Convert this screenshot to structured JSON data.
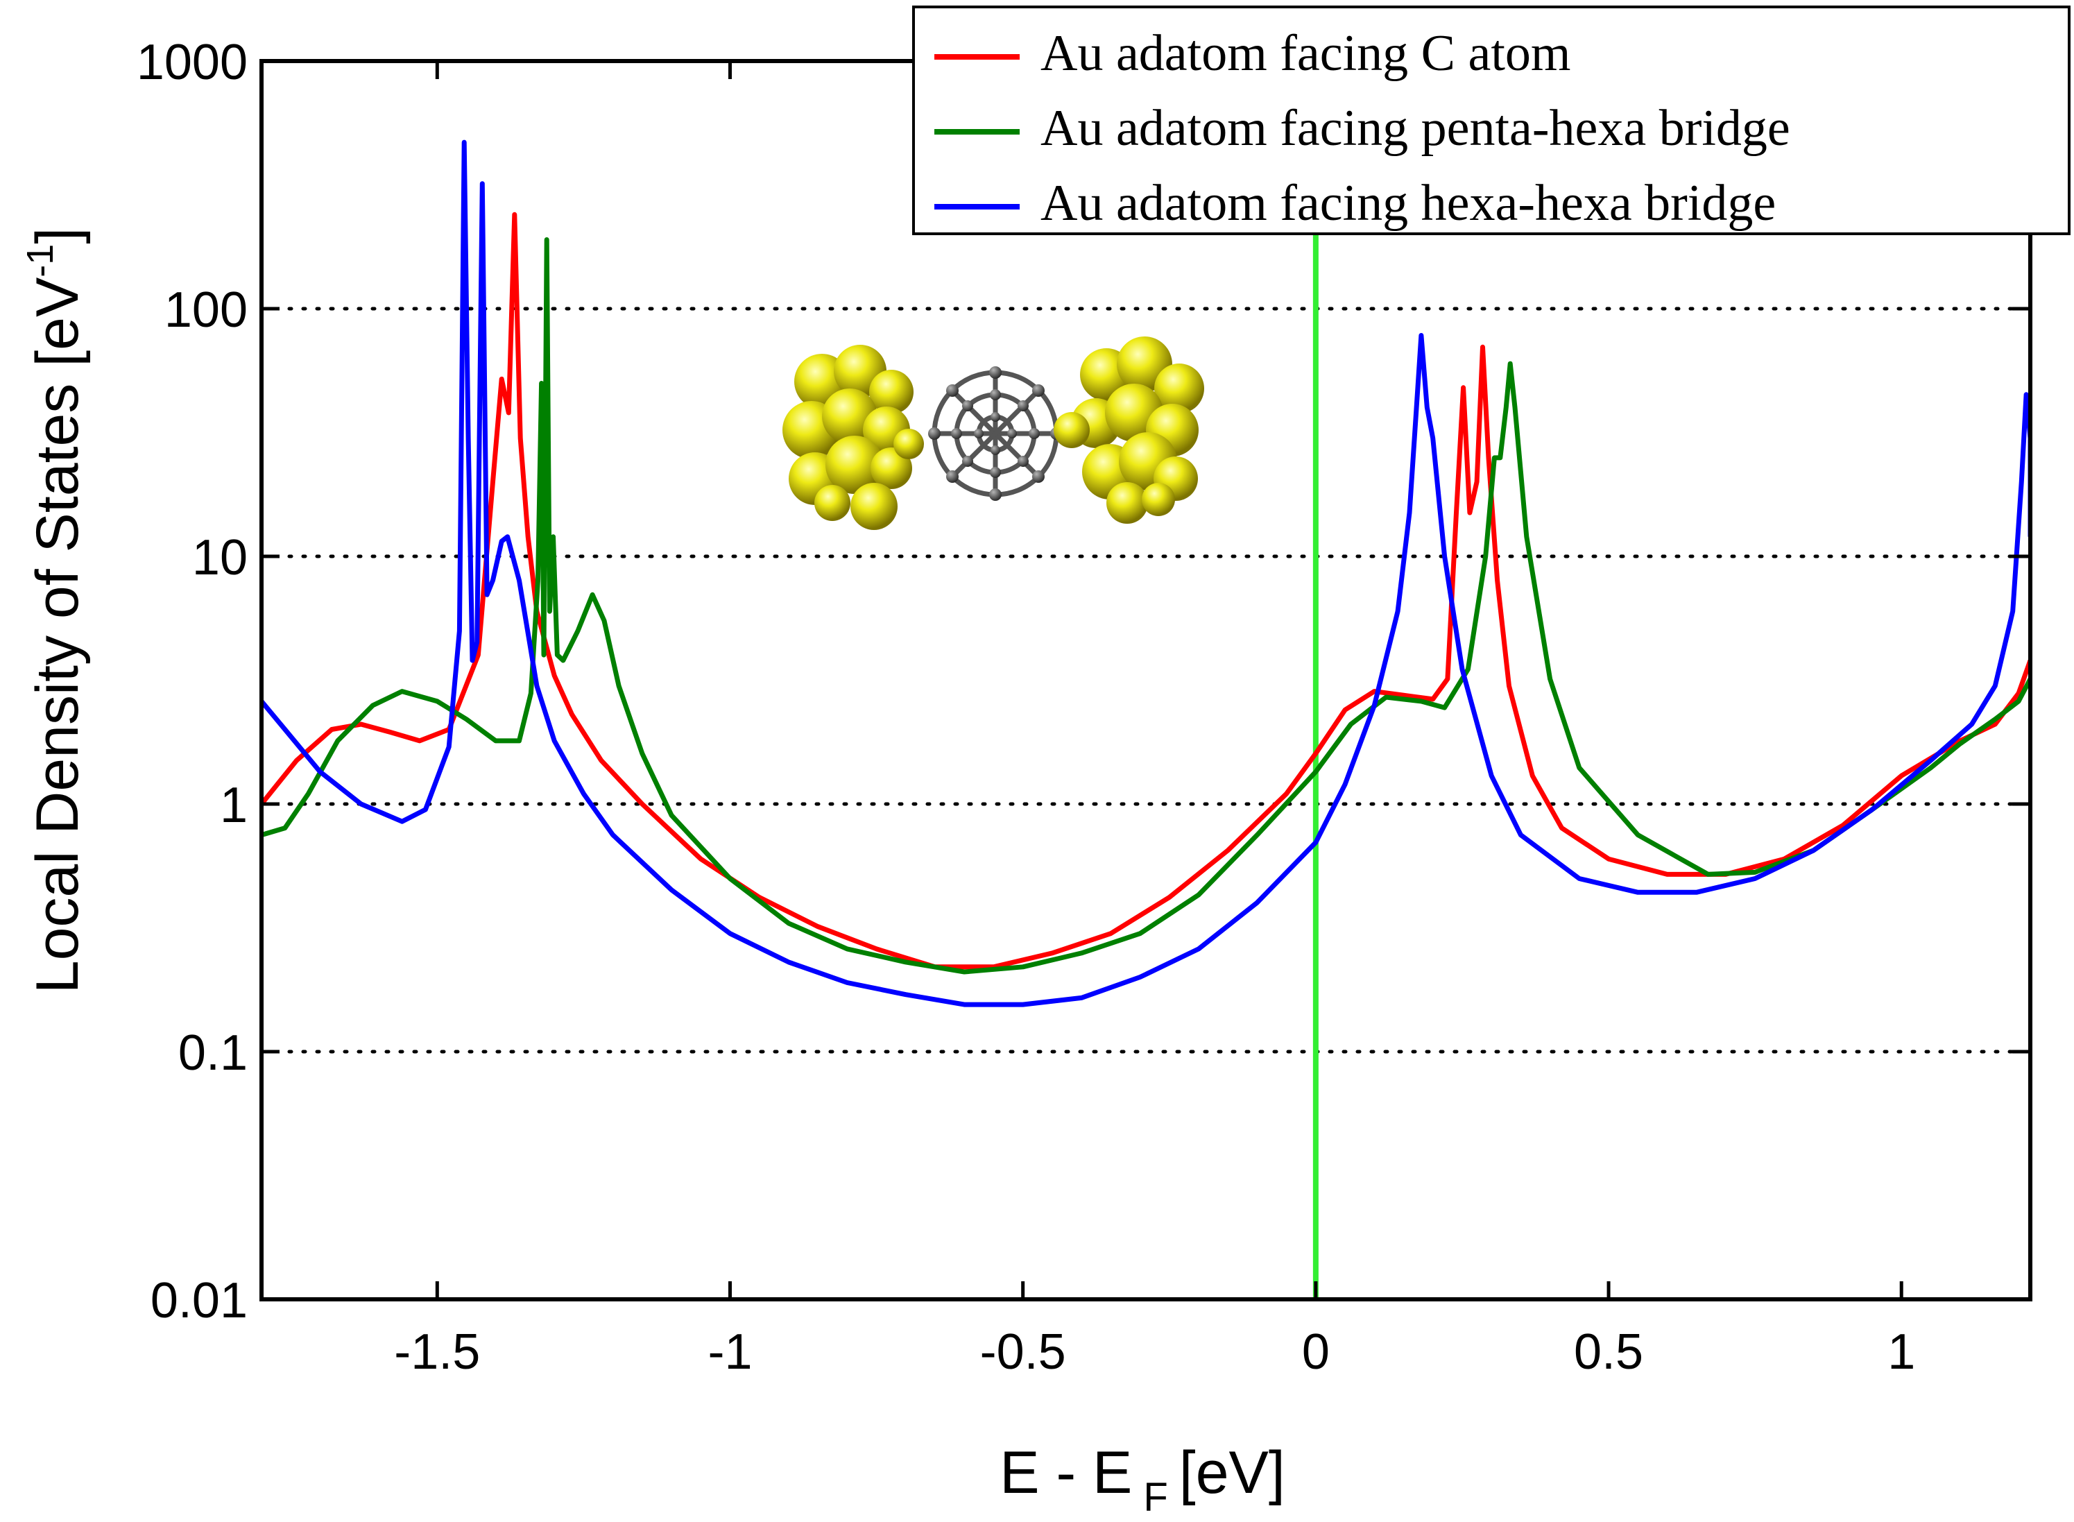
{
  "chart_data": {
    "type": "line",
    "xlabel": "E - E",
    "xlabel_subscript": "F",
    "xlabel_unit": "[eV]",
    "ylabel": "Local Density of States [eV",
    "ylabel_superscript": "-1",
    "ylabel_close": "]",
    "yscale": "log",
    "xlim": [
      -1.8,
      1.22
    ],
    "ylim": [
      0.01,
      1000
    ],
    "x_ticks": [
      -1.5,
      -1,
      -0.5,
      0,
      0.5,
      1
    ],
    "x_tick_labels": [
      "-1.5",
      "-1",
      "-0.5",
      "0",
      "0.5",
      "1"
    ],
    "y_ticks": [
      0.01,
      0.1,
      1,
      10,
      100,
      1000
    ],
    "y_tick_labels": [
      "0.01",
      "0.1",
      "1",
      "10",
      "100",
      "1000"
    ],
    "gridlines": "dotted horizontal at 0.1, 1, 10, 100",
    "vertical_marker": {
      "x": 0,
      "color": "#33ee33",
      "ymin": 0.01,
      "ymax": 200
    },
    "legend_position": "top-right",
    "inset": "Au cluster - C60 molecule - Au cluster junction",
    "series": [
      {
        "name": "Au adatom facing C atom",
        "color": "#ff0000",
        "points": [
          [
            -1.8,
            1.0
          ],
          [
            -1.74,
            1.5
          ],
          [
            -1.68,
            2.0
          ],
          [
            -1.63,
            2.1
          ],
          [
            -1.58,
            1.95
          ],
          [
            -1.53,
            1.8
          ],
          [
            -1.48,
            2.0
          ],
          [
            -1.43,
            4.0
          ],
          [
            -1.405,
            20
          ],
          [
            -1.39,
            52
          ],
          [
            -1.378,
            38
          ],
          [
            -1.368,
            240
          ],
          [
            -1.358,
            30
          ],
          [
            -1.345,
            12
          ],
          [
            -1.33,
            6
          ],
          [
            -1.3,
            3.3
          ],
          [
            -1.27,
            2.3
          ],
          [
            -1.22,
            1.5
          ],
          [
            -1.15,
            1.0
          ],
          [
            -1.05,
            0.6
          ],
          [
            -0.95,
            0.42
          ],
          [
            -0.85,
            0.32
          ],
          [
            -0.75,
            0.26
          ],
          [
            -0.65,
            0.22
          ],
          [
            -0.55,
            0.22
          ],
          [
            -0.45,
            0.25
          ],
          [
            -0.35,
            0.3
          ],
          [
            -0.25,
            0.42
          ],
          [
            -0.15,
            0.65
          ],
          [
            -0.05,
            1.1
          ],
          [
            0.0,
            1.6
          ],
          [
            0.05,
            2.4
          ],
          [
            0.1,
            2.85
          ],
          [
            0.15,
            2.75
          ],
          [
            0.2,
            2.65
          ],
          [
            0.225,
            3.2
          ],
          [
            0.24,
            15
          ],
          [
            0.252,
            48
          ],
          [
            0.263,
            15
          ],
          [
            0.275,
            20
          ],
          [
            0.285,
            70
          ],
          [
            0.295,
            25
          ],
          [
            0.31,
            8
          ],
          [
            0.33,
            3.0
          ],
          [
            0.37,
            1.3
          ],
          [
            0.42,
            0.8
          ],
          [
            0.5,
            0.6
          ],
          [
            0.6,
            0.52
          ],
          [
            0.7,
            0.52
          ],
          [
            0.8,
            0.6
          ],
          [
            0.9,
            0.82
          ],
          [
            1.0,
            1.3
          ],
          [
            1.1,
            1.8
          ],
          [
            1.16,
            2.1
          ],
          [
            1.2,
            2.8
          ],
          [
            1.22,
            3.8
          ]
        ]
      },
      {
        "name": "Au adatom facing penta-hexa bridge",
        "color": "#008000",
        "points": [
          [
            -1.8,
            0.75
          ],
          [
            -1.76,
            0.8
          ],
          [
            -1.72,
            1.1
          ],
          [
            -1.67,
            1.8
          ],
          [
            -1.61,
            2.5
          ],
          [
            -1.56,
            2.85
          ],
          [
            -1.5,
            2.6
          ],
          [
            -1.45,
            2.2
          ],
          [
            -1.4,
            1.8
          ],
          [
            -1.36,
            1.8
          ],
          [
            -1.34,
            2.8
          ],
          [
            -1.328,
            8
          ],
          [
            -1.322,
            50
          ],
          [
            -1.318,
            4
          ],
          [
            -1.313,
            190
          ],
          [
            -1.308,
            6
          ],
          [
            -1.302,
            12
          ],
          [
            -1.295,
            4
          ],
          [
            -1.285,
            3.8
          ],
          [
            -1.26,
            5
          ],
          [
            -1.235,
            7
          ],
          [
            -1.215,
            5.5
          ],
          [
            -1.19,
            3.0
          ],
          [
            -1.15,
            1.6
          ],
          [
            -1.1,
            0.9
          ],
          [
            -1.0,
            0.5
          ],
          [
            -0.9,
            0.33
          ],
          [
            -0.8,
            0.26
          ],
          [
            -0.7,
            0.23
          ],
          [
            -0.6,
            0.21
          ],
          [
            -0.5,
            0.22
          ],
          [
            -0.4,
            0.25
          ],
          [
            -0.3,
            0.3
          ],
          [
            -0.2,
            0.43
          ],
          [
            -0.1,
            0.75
          ],
          [
            0.0,
            1.35
          ],
          [
            0.06,
            2.1
          ],
          [
            0.12,
            2.7
          ],
          [
            0.18,
            2.6
          ],
          [
            0.22,
            2.45
          ],
          [
            0.26,
            3.5
          ],
          [
            0.29,
            10
          ],
          [
            0.305,
            25
          ],
          [
            0.315,
            25
          ],
          [
            0.325,
            40
          ],
          [
            0.332,
            60
          ],
          [
            0.34,
            40
          ],
          [
            0.36,
            12
          ],
          [
            0.4,
            3.2
          ],
          [
            0.45,
            1.4
          ],
          [
            0.55,
            0.75
          ],
          [
            0.67,
            0.52
          ],
          [
            0.75,
            0.53
          ],
          [
            0.85,
            0.65
          ],
          [
            0.95,
            0.95
          ],
          [
            1.05,
            1.4
          ],
          [
            1.1,
            1.75
          ],
          [
            1.16,
            2.2
          ],
          [
            1.2,
            2.6
          ],
          [
            1.22,
            3.2
          ]
        ]
      },
      {
        "name": "Au adatom facing hexa-hexa bridge",
        "color": "#0000ff",
        "points": [
          [
            -1.8,
            2.6
          ],
          [
            -1.76,
            2.0
          ],
          [
            -1.7,
            1.35
          ],
          [
            -1.63,
            1.0
          ],
          [
            -1.56,
            0.85
          ],
          [
            -1.52,
            0.95
          ],
          [
            -1.48,
            1.7
          ],
          [
            -1.462,
            5
          ],
          [
            -1.454,
            470
          ],
          [
            -1.447,
            30
          ],
          [
            -1.44,
            3.8
          ],
          [
            -1.432,
            4.5
          ],
          [
            -1.423,
            320
          ],
          [
            -1.415,
            7
          ],
          [
            -1.405,
            8
          ],
          [
            -1.39,
            11.5
          ],
          [
            -1.38,
            12
          ],
          [
            -1.36,
            8
          ],
          [
            -1.33,
            3
          ],
          [
            -1.3,
            1.8
          ],
          [
            -1.25,
            1.1
          ],
          [
            -1.2,
            0.75
          ],
          [
            -1.1,
            0.45
          ],
          [
            -1.0,
            0.3
          ],
          [
            -0.9,
            0.23
          ],
          [
            -0.8,
            0.19
          ],
          [
            -0.7,
            0.17
          ],
          [
            -0.6,
            0.155
          ],
          [
            -0.5,
            0.155
          ],
          [
            -0.4,
            0.165
          ],
          [
            -0.3,
            0.2
          ],
          [
            -0.2,
            0.26
          ],
          [
            -0.1,
            0.4
          ],
          [
            0.0,
            0.7
          ],
          [
            0.05,
            1.2
          ],
          [
            0.1,
            2.5
          ],
          [
            0.14,
            6
          ],
          [
            0.16,
            15
          ],
          [
            0.172,
            40
          ],
          [
            0.18,
            78
          ],
          [
            0.19,
            40
          ],
          [
            0.2,
            30
          ],
          [
            0.22,
            10
          ],
          [
            0.25,
            3.5
          ],
          [
            0.3,
            1.3
          ],
          [
            0.35,
            0.75
          ],
          [
            0.45,
            0.5
          ],
          [
            0.55,
            0.44
          ],
          [
            0.65,
            0.44
          ],
          [
            0.75,
            0.5
          ],
          [
            0.85,
            0.65
          ],
          [
            0.95,
            0.95
          ],
          [
            1.05,
            1.5
          ],
          [
            1.12,
            2.1
          ],
          [
            1.16,
            3.0
          ],
          [
            1.19,
            6
          ],
          [
            1.205,
            20
          ],
          [
            1.213,
            45
          ],
          [
            1.22,
            30
          ],
          [
            1.22,
            12
          ]
        ]
      }
    ]
  }
}
